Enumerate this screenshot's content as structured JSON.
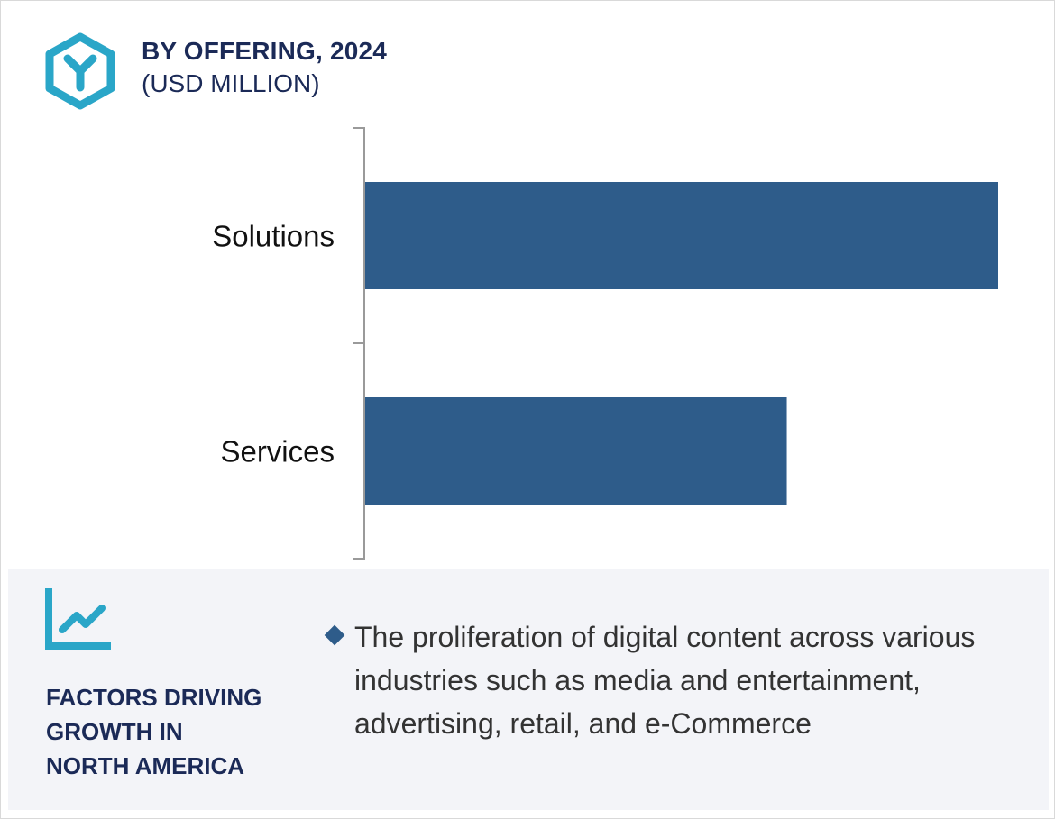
{
  "header": {
    "title": "BY OFFERING, 2024",
    "unit": "(USD MILLION)",
    "icon": "hexagon-y-icon"
  },
  "colors": {
    "bar": "#2e5c8a",
    "title": "#1b2a57",
    "icon_accent": "#2aa6c8",
    "panel_bg": "#f3f4f8"
  },
  "chart_data": {
    "type": "bar",
    "orientation": "horizontal",
    "categories": [
      "Solutions",
      "Services"
    ],
    "values": [
      100,
      66.6
    ],
    "value_note": "relative bar length, no value axis shown",
    "title": "BY OFFERING, 2024",
    "unit": "(USD MILLION)",
    "xlim": [
      0,
      100
    ],
    "grid": false,
    "legend": "none"
  },
  "factors": {
    "icon": "trend-chart-icon",
    "title_lines": [
      "FACTORS DRIVING",
      "GROWTH IN",
      "NORTH AMERICA"
    ],
    "bullets": [
      "The proliferation of digital content across various industries such as media and entertainment, advertising, retail, and  e-Commerce"
    ]
  }
}
